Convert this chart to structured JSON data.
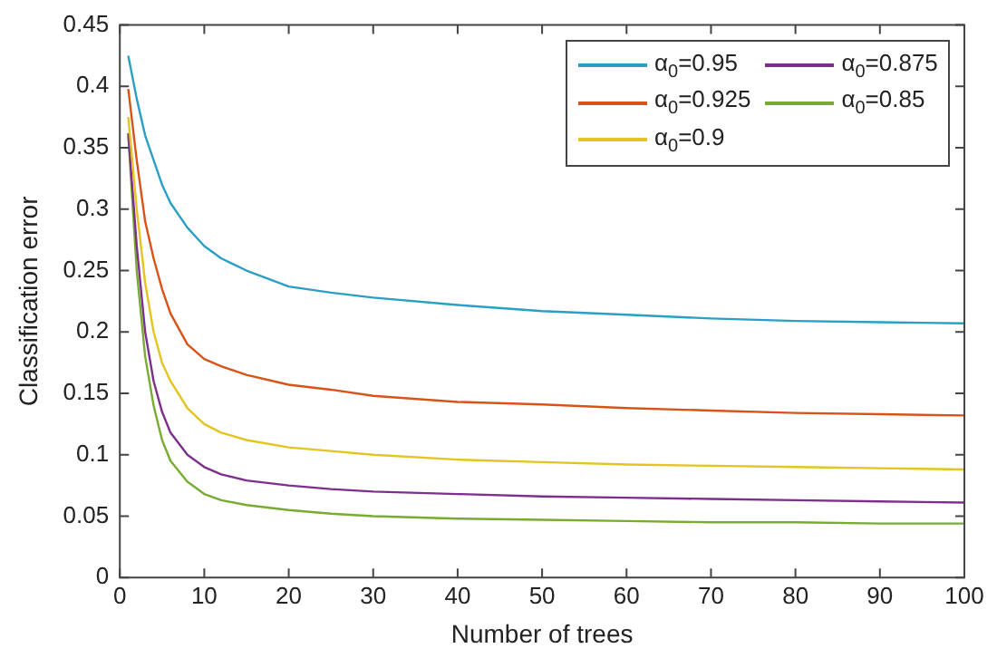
{
  "chart_data": {
    "type": "line",
    "xlabel": "Number of trees",
    "ylabel": "Classification error",
    "x": [
      1,
      2,
      3,
      4,
      5,
      6,
      8,
      10,
      12,
      15,
      20,
      25,
      30,
      40,
      50,
      60,
      70,
      80,
      90,
      100
    ],
    "xlim": [
      0,
      100
    ],
    "xticks": [
      0,
      10,
      20,
      30,
      40,
      50,
      60,
      70,
      80,
      90,
      100
    ],
    "ylim": [
      0,
      0.45
    ],
    "yticks": [
      0,
      0.05,
      0.1,
      0.15,
      0.2,
      0.25,
      0.3,
      0.35,
      0.4,
      0.45
    ],
    "grid": false,
    "legend": "top right",
    "marker": "none",
    "line_style": "solid",
    "series": [
      {
        "name": "α$_{0}$=0.95",
        "color": "#2a9fc6",
        "values": [
          0.425,
          0.39,
          0.36,
          0.34,
          0.32,
          0.305,
          0.285,
          0.27,
          0.26,
          0.25,
          0.237,
          0.232,
          0.228,
          0.222,
          0.217,
          0.214,
          0.211,
          0.209,
          0.208,
          0.207
        ]
      },
      {
        "name": "α$_{0}$=0.925",
        "color": "#d95319",
        "values": [
          0.398,
          0.34,
          0.29,
          0.26,
          0.235,
          0.215,
          0.19,
          0.178,
          0.172,
          0.165,
          0.157,
          0.153,
          0.148,
          0.143,
          0.141,
          0.138,
          0.136,
          0.134,
          0.133,
          0.132
        ]
      },
      {
        "name": "α$_{0}$=0.9",
        "color": "#e3c420",
        "values": [
          0.375,
          0.3,
          0.24,
          0.2,
          0.175,
          0.16,
          0.138,
          0.125,
          0.118,
          0.112,
          0.106,
          0.103,
          0.1,
          0.096,
          0.094,
          0.092,
          0.091,
          0.09,
          0.089,
          0.088
        ]
      },
      {
        "name": "α$_{0}$=0.875",
        "color": "#7e2f8e",
        "values": [
          0.362,
          0.27,
          0.2,
          0.16,
          0.135,
          0.118,
          0.1,
          0.09,
          0.084,
          0.079,
          0.075,
          0.072,
          0.07,
          0.068,
          0.066,
          0.065,
          0.064,
          0.063,
          0.062,
          0.061
        ]
      },
      {
        "name": "α$_{0}$=0.85",
        "color": "#77ac30",
        "values": [
          0.36,
          0.25,
          0.18,
          0.14,
          0.112,
          0.095,
          0.078,
          0.068,
          0.063,
          0.059,
          0.055,
          0.052,
          0.05,
          0.048,
          0.047,
          0.046,
          0.045,
          0.045,
          0.044,
          0.044
        ]
      }
    ]
  }
}
